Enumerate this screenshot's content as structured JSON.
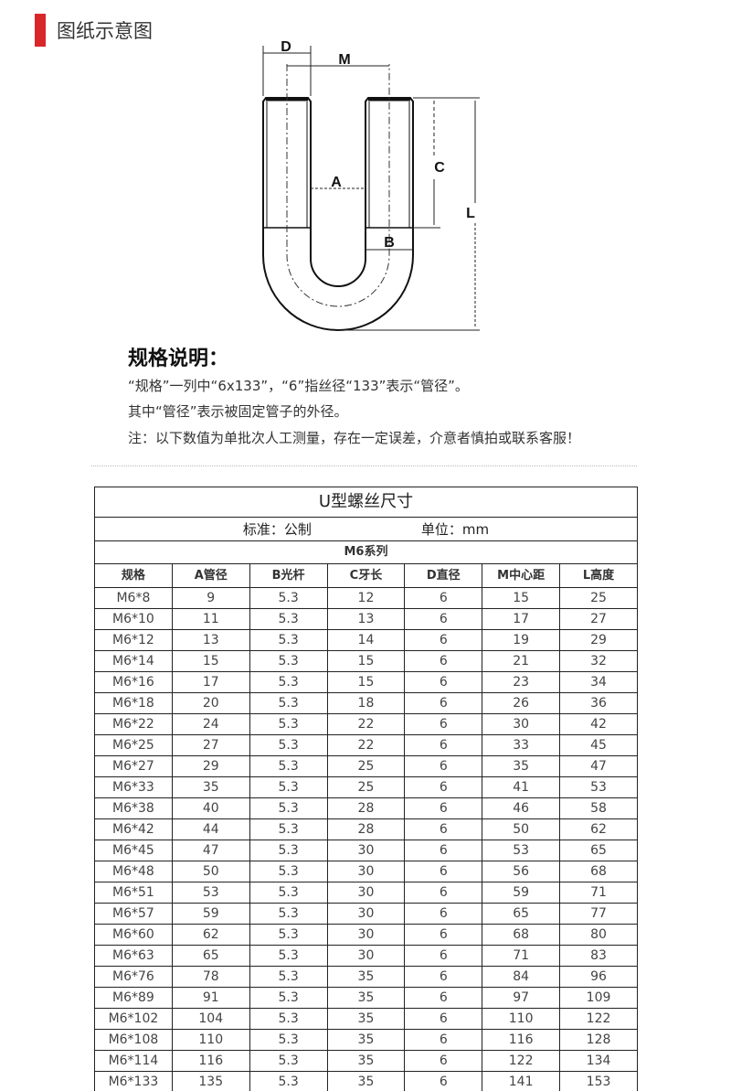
{
  "accent_color": "#d9262b",
  "section_title": "图纸示意图",
  "diagram_labels": {
    "d": "D",
    "m": "M",
    "a": "A",
    "b": "B",
    "c": "C",
    "l": "L"
  },
  "spec": {
    "heading": "规格说明：",
    "lines": [
      "“规格”一列中“6x133”，“6”指丝径“133”表示“管径”。",
      "其中“管径”表示被固定管子的外径。",
      "注：以下数值为单批次人工测量，存在一定误差，介意者慎拍或联系客服！"
    ]
  },
  "table": {
    "title": "U型螺丝尺寸",
    "standard": "标准：公制",
    "unit": "单位：mm",
    "series": "M6系列",
    "headers": [
      "规格",
      "A管径",
      "B光杆",
      "C牙长",
      "D直径",
      "M中心距",
      "L高度"
    ],
    "rows": [
      [
        "M6*8",
        "9",
        "5.3",
        "12",
        "6",
        "15",
        "25"
      ],
      [
        "M6*10",
        "11",
        "5.3",
        "13",
        "6",
        "17",
        "27"
      ],
      [
        "M6*12",
        "13",
        "5.3",
        "14",
        "6",
        "19",
        "29"
      ],
      [
        "M6*14",
        "15",
        "5.3",
        "15",
        "6",
        "21",
        "32"
      ],
      [
        "M6*16",
        "17",
        "5.3",
        "15",
        "6",
        "23",
        "34"
      ],
      [
        "M6*18",
        "20",
        "5.3",
        "18",
        "6",
        "26",
        "36"
      ],
      [
        "M6*22",
        "24",
        "5.3",
        "22",
        "6",
        "30",
        "42"
      ],
      [
        "M6*25",
        "27",
        "5.3",
        "22",
        "6",
        "33",
        "45"
      ],
      [
        "M6*27",
        "29",
        "5.3",
        "25",
        "6",
        "35",
        "47"
      ],
      [
        "M6*33",
        "35",
        "5.3",
        "25",
        "6",
        "41",
        "53"
      ],
      [
        "M6*38",
        "40",
        "5.3",
        "28",
        "6",
        "46",
        "58"
      ],
      [
        "M6*42",
        "44",
        "5.3",
        "28",
        "6",
        "50",
        "62"
      ],
      [
        "M6*45",
        "47",
        "5.3",
        "30",
        "6",
        "53",
        "65"
      ],
      [
        "M6*48",
        "50",
        "5.3",
        "30",
        "6",
        "56",
        "68"
      ],
      [
        "M6*51",
        "53",
        "5.3",
        "30",
        "6",
        "59",
        "71"
      ],
      [
        "M6*57",
        "59",
        "5.3",
        "30",
        "6",
        "65",
        "77"
      ],
      [
        "M6*60",
        "62",
        "5.3",
        "30",
        "6",
        "68",
        "80"
      ],
      [
        "M6*63",
        "65",
        "5.3",
        "30",
        "6",
        "71",
        "83"
      ],
      [
        "M6*76",
        "78",
        "5.3",
        "35",
        "6",
        "84",
        "96"
      ],
      [
        "M6*89",
        "91",
        "5.3",
        "35",
        "6",
        "97",
        "109"
      ],
      [
        "M6*102",
        "104",
        "5.3",
        "35",
        "6",
        "110",
        "122"
      ],
      [
        "M6*108",
        "110",
        "5.3",
        "35",
        "6",
        "116",
        "128"
      ],
      [
        "M6*114",
        "116",
        "5.3",
        "35",
        "6",
        "122",
        "134"
      ],
      [
        "M6*133",
        "135",
        "5.3",
        "35",
        "6",
        "141",
        "153"
      ]
    ]
  }
}
